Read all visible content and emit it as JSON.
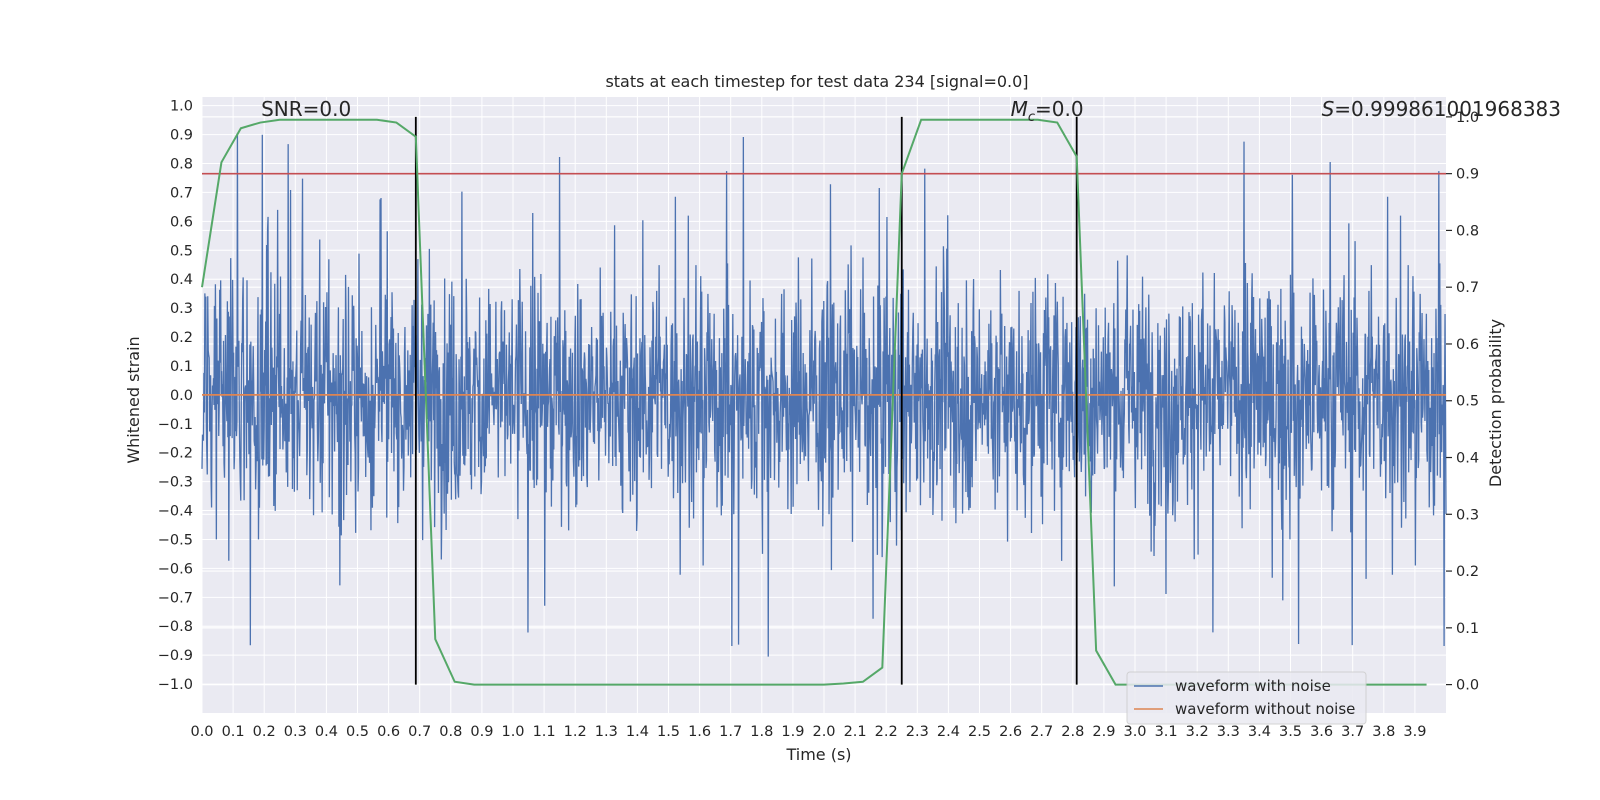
{
  "chart_data": {
    "type": "line",
    "title": "stats at each timestep for test data 234 [signal=0.0]",
    "xlabel": "Time (s)",
    "ylabel": "Whitened strain",
    "y2label": "Detection probability",
    "xlim": [
      0.0,
      4.0
    ],
    "ylim": [
      -1.1,
      1.03
    ],
    "y2lim": [
      -0.05,
      1.035
    ],
    "x_ticks": [
      0.0,
      0.1,
      0.2,
      0.3,
      0.4,
      0.5,
      0.6,
      0.7,
      0.8,
      0.9,
      1.0,
      1.1,
      1.2,
      1.3,
      1.4,
      1.5,
      1.6,
      1.7,
      1.8,
      1.9,
      2.0,
      2.1,
      2.2,
      2.3,
      2.4,
      2.5,
      2.6,
      2.7,
      2.8,
      2.9,
      3.0,
      3.1,
      3.2,
      3.3,
      3.4,
      3.5,
      3.6,
      3.7,
      3.8,
      3.9
    ],
    "x_tick_labels": [
      "0.0",
      "0.1",
      "0.2",
      "0.3",
      "0.4",
      "0.5",
      "0.6",
      "0.7",
      "0.8",
      "0.9",
      "1.0",
      "1.1",
      "1.2",
      "1.3",
      "1.4",
      "1.5",
      "1.6",
      "1.7",
      "1.8",
      "1.9",
      "2.0",
      "2.1",
      "2.2",
      "2.3",
      "2.4",
      "2.5",
      "2.6",
      "2.7",
      "2.8",
      "2.9",
      "3.0",
      "3.1",
      "3.2",
      "3.3",
      "3.4",
      "3.5",
      "3.6",
      "3.7",
      "3.8",
      "3.9"
    ],
    "y_ticks": [
      1.0,
      0.9,
      0.8,
      0.7,
      0.6,
      0.5,
      0.4,
      0.3,
      0.2,
      0.1,
      0.0,
      -0.1,
      -0.2,
      -0.3,
      -0.4,
      -0.5,
      -0.6,
      -0.7,
      -0.8,
      -0.9,
      -1.0
    ],
    "y_tick_labels": [
      "1.0",
      "0.9",
      "0.8",
      "0.7",
      "0.6",
      "0.5",
      "0.4",
      "0.3",
      "0.2",
      "0.1",
      "0.0",
      "−0.1",
      "−0.2",
      "−0.3",
      "−0.4",
      "−0.5",
      "−0.6",
      "−0.7",
      "−0.8",
      "−0.9",
      "−1.0"
    ],
    "y2_ticks": [
      1.0,
      0.9,
      0.8,
      0.7,
      0.6,
      0.5,
      0.4,
      0.3,
      0.2,
      0.1,
      0.0
    ],
    "y2_tick_labels": [
      "1.0",
      "0.9",
      "0.8",
      "0.7",
      "0.6",
      "0.5",
      "0.4",
      "0.3",
      "0.2",
      "0.1",
      "0.0"
    ],
    "series": [
      {
        "name": "waveform with noise",
        "color": "#4c72b0",
        "kind": "noisy-strain",
        "sample_rate_hz": 2048,
        "typical_amplitude": 0.22,
        "peak_amplitude": 0.93
      },
      {
        "name": "waveform without noise",
        "color": "#dd8452",
        "x": [
          0.0,
          4.0
        ],
        "y": [
          0.0,
          0.0
        ]
      },
      {
        "name": "detection probability",
        "axis": "right",
        "color": "#55a868",
        "x": [
          0.0,
          0.0625,
          0.125,
          0.1875,
          0.25,
          0.3125,
          0.375,
          0.4375,
          0.5,
          0.5625,
          0.625,
          0.6875,
          0.75,
          0.8125,
          0.875,
          0.9375,
          1.0,
          1.5,
          2.0,
          2.0625,
          2.125,
          2.1875,
          2.25,
          2.3125,
          2.375,
          2.4375,
          2.5,
          2.5625,
          2.625,
          2.6875,
          2.75,
          2.8125,
          2.875,
          2.9375,
          3.0,
          3.5,
          3.9375
        ],
        "y": [
          0.7,
          0.92,
          0.98,
          0.99,
          0.995,
          0.995,
          0.995,
          0.995,
          0.995,
          0.995,
          0.99,
          0.965,
          0.08,
          0.005,
          0.0,
          0.0,
          0.0,
          0.0,
          0.0,
          0.002,
          0.005,
          0.03,
          0.9,
          0.995,
          0.995,
          0.995,
          0.995,
          0.995,
          0.995,
          0.995,
          0.99,
          0.93,
          0.06,
          0.0,
          0.0,
          0.0,
          0.0
        ]
      }
    ],
    "threshold": {
      "axis": "right",
      "value": 0.9,
      "color": "#c44e52"
    },
    "vertical_markers": [
      0.6875,
      2.25,
      2.8125
    ],
    "annotations": [
      {
        "text": "SNR=0.0",
        "x": 0.19,
        "y_right": 1.0
      },
      {
        "text_main": "M",
        "text_sub": "c",
        "text_rest": "=0.0",
        "x": 2.6,
        "y_right": 1.0
      },
      {
        "text_main": "S",
        "text_rest": "=0.999861001968383",
        "x": 3.6,
        "y_right": 1.0
      }
    ],
    "legend": {
      "position": "lower-right",
      "entries": [
        "waveform with noise",
        "waveform without noise"
      ]
    },
    "grid": true,
    "background": "#eaeaf2"
  }
}
